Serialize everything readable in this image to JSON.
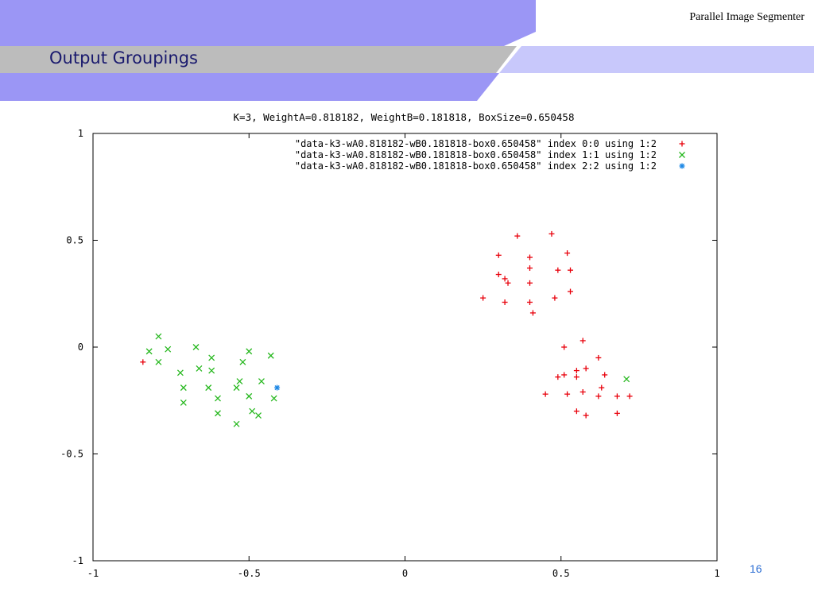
{
  "slide": {
    "title": "Output Groupings",
    "deck_name": "Parallel Image Segmenter",
    "page_number": "16",
    "colors": {
      "banner_primary": "#9b96f5",
      "banner_light": "#c8c8fb",
      "banner_gray": "#bcbcbc",
      "title_text": "#1a1a6e",
      "page_number": "#2e6fd4"
    }
  },
  "chart_data": {
    "type": "scatter",
    "title": "K=3, WeightA=0.818182, WeightB=0.181818, BoxSize=0.650458",
    "xlabel": "",
    "ylabel": "",
    "xlim": [
      -1,
      1
    ],
    "ylim": [
      -1,
      1
    ],
    "grid": false,
    "legend_position": "top-right",
    "x_ticks": [
      {
        "value": -1,
        "label": "-1"
      },
      {
        "value": -0.5,
        "label": "-0.5"
      },
      {
        "value": 0,
        "label": "0"
      },
      {
        "value": 0.5,
        "label": "0.5"
      },
      {
        "value": 1,
        "label": "1"
      }
    ],
    "y_ticks": [
      {
        "value": 1,
        "label": "1"
      },
      {
        "value": 0.5,
        "label": "0.5"
      },
      {
        "value": 0,
        "label": "0"
      },
      {
        "value": -0.5,
        "label": "-0.5"
      },
      {
        "value": -1,
        "label": "-1"
      }
    ],
    "series": [
      {
        "name": "\"data-k3-wA0.818182-wB0.181818-box0.650458\" index 0:0 using 1:2",
        "marker": "plus",
        "color": "#e8000b",
        "points": [
          [
            -0.84,
            -0.07
          ],
          [
            0.36,
            0.52
          ],
          [
            0.47,
            0.53
          ],
          [
            0.3,
            0.43
          ],
          [
            0.4,
            0.42
          ],
          [
            0.52,
            0.44
          ],
          [
            0.4,
            0.37
          ],
          [
            0.49,
            0.36
          ],
          [
            0.53,
            0.36
          ],
          [
            0.3,
            0.34
          ],
          [
            0.32,
            0.32
          ],
          [
            0.33,
            0.3
          ],
          [
            0.4,
            0.3
          ],
          [
            0.25,
            0.23
          ],
          [
            0.32,
            0.21
          ],
          [
            0.48,
            0.23
          ],
          [
            0.53,
            0.26
          ],
          [
            0.4,
            0.21
          ],
          [
            0.41,
            0.16
          ],
          [
            0.51,
            0.0
          ],
          [
            0.57,
            0.03
          ],
          [
            0.62,
            -0.05
          ],
          [
            0.51,
            -0.13
          ],
          [
            0.49,
            -0.14
          ],
          [
            0.55,
            -0.11
          ],
          [
            0.58,
            -0.1
          ],
          [
            0.55,
            -0.14
          ],
          [
            0.64,
            -0.13
          ],
          [
            0.45,
            -0.22
          ],
          [
            0.52,
            -0.22
          ],
          [
            0.57,
            -0.21
          ],
          [
            0.63,
            -0.19
          ],
          [
            0.62,
            -0.23
          ],
          [
            0.68,
            -0.23
          ],
          [
            0.72,
            -0.23
          ],
          [
            0.55,
            -0.3
          ],
          [
            0.58,
            -0.32
          ],
          [
            0.68,
            -0.31
          ]
        ]
      },
      {
        "name": "\"data-k3-wA0.818182-wB0.181818-box0.650458\" index 1:1 using 1:2",
        "marker": "cross",
        "color": "#27b81f",
        "points": [
          [
            -0.79,
            0.05
          ],
          [
            -0.82,
            -0.02
          ],
          [
            -0.76,
            -0.01
          ],
          [
            -0.67,
            0.0
          ],
          [
            -0.62,
            -0.05
          ],
          [
            -0.79,
            -0.07
          ],
          [
            -0.72,
            -0.12
          ],
          [
            -0.66,
            -0.1
          ],
          [
            -0.62,
            -0.11
          ],
          [
            -0.52,
            -0.07
          ],
          [
            -0.5,
            -0.02
          ],
          [
            -0.43,
            -0.04
          ],
          [
            -0.71,
            -0.19
          ],
          [
            -0.63,
            -0.19
          ],
          [
            -0.54,
            -0.19
          ],
          [
            -0.53,
            -0.16
          ],
          [
            -0.46,
            -0.16
          ],
          [
            -0.5,
            -0.23
          ],
          [
            -0.42,
            -0.24
          ],
          [
            -0.71,
            -0.26
          ],
          [
            -0.6,
            -0.24
          ],
          [
            -0.6,
            -0.31
          ],
          [
            -0.49,
            -0.3
          ],
          [
            -0.47,
            -0.32
          ],
          [
            -0.54,
            -0.36
          ],
          [
            0.71,
            -0.15
          ]
        ]
      },
      {
        "name": "\"data-k3-wA0.818182-wB0.181818-box0.650458\" index 2:2 using 1:2",
        "marker": "star",
        "color": "#1e88e5",
        "points": [
          [
            -0.41,
            -0.19
          ]
        ]
      }
    ]
  }
}
